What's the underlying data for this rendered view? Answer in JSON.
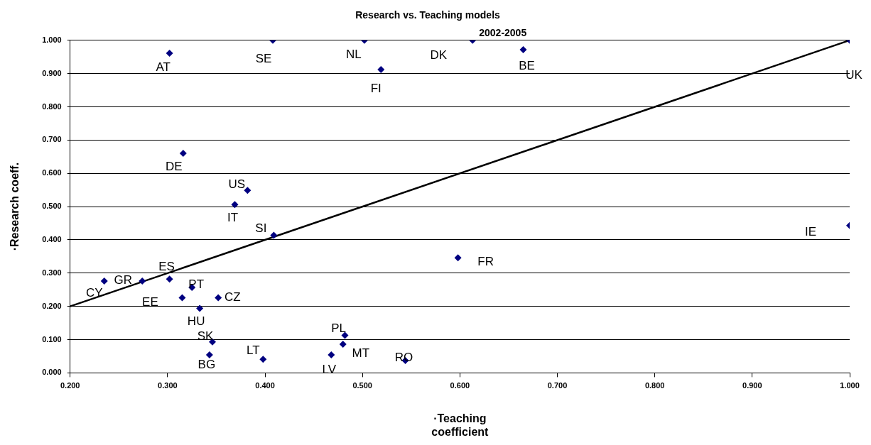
{
  "chart_data": {
    "type": "scatter",
    "title": "Research vs. Teaching models",
    "xlabel": "·Teaching\ncoefficient",
    "ylabel": "·Research coeff.",
    "xlim": [
      0.2,
      1.0
    ],
    "ylim": [
      0,
      1.0
    ],
    "xticks": [
      {
        "value": 0.2,
        "label": "0.200"
      },
      {
        "value": 0.3,
        "label": "0.300"
      },
      {
        "value": 0.4,
        "label": "0.400"
      },
      {
        "value": 0.5,
        "label": "0.500"
      },
      {
        "value": 0.6,
        "label": "0.600"
      },
      {
        "value": 0.7,
        "label": "0.700"
      },
      {
        "value": 0.8,
        "label": "0.800"
      },
      {
        "value": 0.9,
        "label": "0.900"
      },
      {
        "value": 1.0,
        "label": "1.000"
      }
    ],
    "yticks": [
      {
        "value": 0,
        "label": "0.000"
      },
      {
        "value": 0.1,
        "label": "0.100"
      },
      {
        "value": 0.2,
        "label": "0.200"
      },
      {
        "value": 0.3,
        "label": "0.300"
      },
      {
        "value": 0.4,
        "label": "0.400"
      },
      {
        "value": 0.5,
        "label": "0.500"
      },
      {
        "value": 0.6,
        "label": "0.600"
      },
      {
        "value": 0.7,
        "label": "0.700"
      },
      {
        "value": 0.8,
        "label": "0.800"
      },
      {
        "value": 0.9,
        "label": "0.900"
      },
      {
        "value": 1.0,
        "label": "1.000"
      }
    ],
    "grid": "y",
    "marker": "diamond",
    "series": [
      {
        "color": "#000080",
        "x": [
          0.302,
          0.408,
          0.502,
          0.519,
          0.613,
          0.665,
          1.0,
          1.0,
          0.316,
          0.382,
          0.369,
          0.409,
          0.235,
          0.274,
          0.302,
          0.325,
          0.315,
          0.352,
          0.333,
          0.346,
          0.343,
          0.398,
          0.468,
          0.482,
          0.48,
          0.544,
          0.598
        ],
        "values": [
          0.961,
          1.0,
          1.0,
          0.912,
          1.0,
          0.972,
          1.0,
          0.443,
          0.66,
          0.549,
          0.506,
          0.414,
          0.276,
          0.276,
          0.282,
          0.257,
          0.226,
          0.226,
          0.194,
          0.093,
          0.054,
          0.041,
          0.054,
          0.113,
          0.086,
          0.037,
          0.346
        ]
      },
      {
        "type": "line",
        "color": "#000000",
        "marker": "none",
        "x": [
          0.2,
          1.0
        ],
        "values": [
          0.2,
          1.0
        ]
      }
    ],
    "annotations": [
      "2002-2005",
      {
        "text": "AT",
        "x": 0.302,
        "y": 0.961
      },
      {
        "text": "SE",
        "x": 0.408,
        "y": 1.0
      },
      {
        "text": "NL",
        "x": 0.502,
        "y": 1.0
      },
      {
        "text": "FI",
        "x": 0.519,
        "y": 0.912
      },
      {
        "text": "DK",
        "x": 0.613,
        "y": 1.0
      },
      {
        "text": "BE",
        "x": 0.665,
        "y": 0.972
      },
      {
        "text": "UK",
        "x": 1.0,
        "y": 1.0
      },
      {
        "text": "IE",
        "x": 1.0,
        "y": 0.443
      },
      {
        "text": "DE",
        "x": 0.316,
        "y": 0.66
      },
      {
        "text": "US",
        "x": 0.382,
        "y": 0.549
      },
      {
        "text": "IT",
        "x": 0.369,
        "y": 0.506
      },
      {
        "text": "SI",
        "x": 0.409,
        "y": 0.414
      },
      {
        "text": "CY",
        "x": 0.235,
        "y": 0.276
      },
      {
        "text": "GR",
        "x": 0.274,
        "y": 0.276
      },
      {
        "text": "ES",
        "x": 0.302,
        "y": 0.282
      },
      {
        "text": "PT",
        "x": 0.325,
        "y": 0.257
      },
      {
        "text": "EE",
        "x": 0.315,
        "y": 0.226
      },
      {
        "text": "CZ",
        "x": 0.352,
        "y": 0.226
      },
      {
        "text": "HU",
        "x": 0.333,
        "y": 0.194
      },
      {
        "text": "SK",
        "x": 0.346,
        "y": 0.093
      },
      {
        "text": "BG",
        "x": 0.343,
        "y": 0.054
      },
      {
        "text": "LT",
        "x": 0.398,
        "y": 0.041
      },
      {
        "text": "LV",
        "x": 0.468,
        "y": 0.054
      },
      {
        "text": "PL",
        "x": 0.482,
        "y": 0.113
      },
      {
        "text": "MT",
        "x": 0.48,
        "y": 0.086
      },
      {
        "text": "RO",
        "x": 0.544,
        "y": 0.037
      },
      {
        "text": "FR",
        "x": 0.598,
        "y": 0.346
      }
    ]
  }
}
